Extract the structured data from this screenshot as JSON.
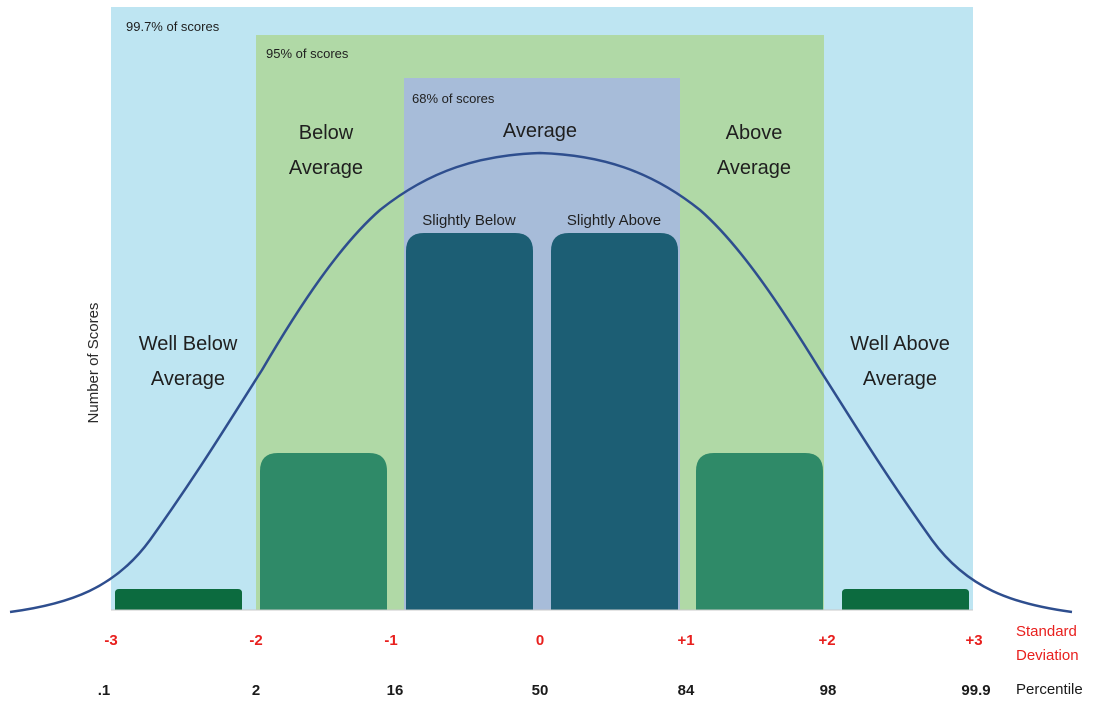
{
  "bands": [
    {
      "id": "band-99-7",
      "label": "99.7% of scores",
      "color": "#bee5f2"
    },
    {
      "id": "band-95",
      "label": "95% of scores",
      "color": "#b0d9a6"
    },
    {
      "id": "band-68",
      "label": "68% of scores",
      "color": "#a7bcd9"
    }
  ],
  "regions": {
    "well_below": [
      "Well Below",
      "Average"
    ],
    "below": [
      "Below",
      "Average"
    ],
    "average": "Average",
    "above": [
      "Above",
      "Average"
    ],
    "well_above": [
      "Well Above",
      "Average"
    ],
    "slightly_below": "Slightly Below",
    "slightly_above": "Slightly Above"
  },
  "bars": [
    {
      "name": "well-below-bar",
      "color": "#0c6b3f"
    },
    {
      "name": "below-bar",
      "color": "#2f8a68"
    },
    {
      "name": "slightly-below-bar",
      "color": "#1c5e74"
    },
    {
      "name": "slightly-above-bar",
      "color": "#1c5e74"
    },
    {
      "name": "above-bar",
      "color": "#2f8a68"
    },
    {
      "name": "well-above-bar",
      "color": "#0c6b3f"
    }
  ],
  "curve_color": "#2e4e8e",
  "y_axis_label": "Number of Scores",
  "standard_deviation": {
    "title": [
      "Standard",
      "Deviation"
    ],
    "ticks": [
      "-3",
      "-2",
      "-1",
      "0",
      "+1",
      "+2",
      "+3"
    ]
  },
  "percentile": {
    "title": "Percentile",
    "ticks": [
      ".1",
      "2",
      "16",
      "50",
      "84",
      "98",
      "99.9"
    ]
  }
}
